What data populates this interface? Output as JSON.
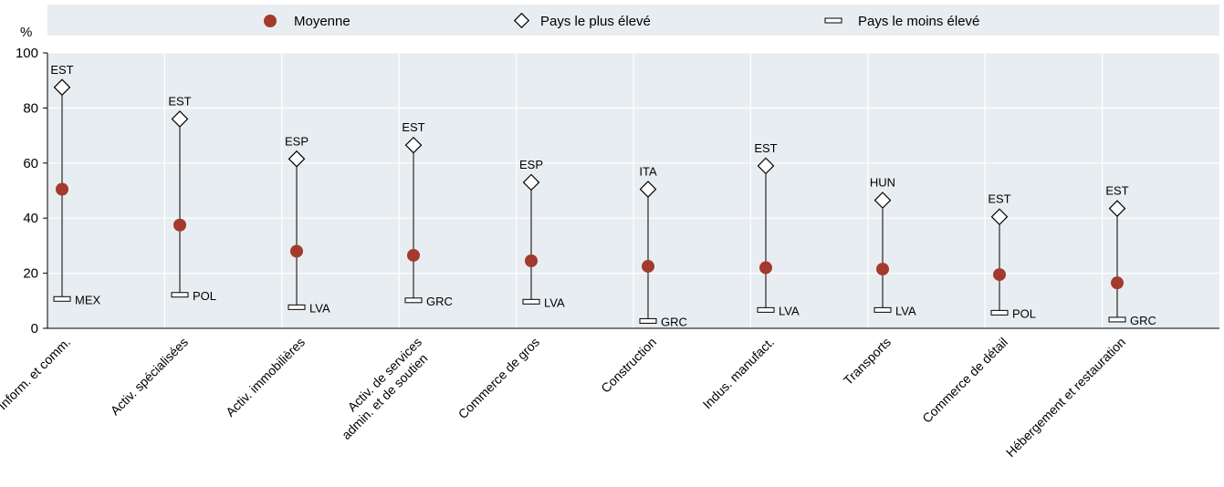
{
  "chart_data": {
    "type": "range-dot",
    "y_unit_label": "%",
    "ylim": [
      0,
      100
    ],
    "y_ticks": [
      "0",
      "20",
      "40",
      "60",
      "80",
      "100"
    ],
    "grid": true,
    "legend_position": "top",
    "legend": {
      "mean": "Moyenne",
      "max": "Pays le plus élevé",
      "min": "Pays le moins élevé"
    },
    "colors": {
      "mean": "#a33a2c",
      "background": "#e8edf1"
    },
    "categories": [
      {
        "label": [
          "Inform. et comm."
        ],
        "mean": 50.5,
        "max": 87.5,
        "max_country": "EST",
        "min": 10.5,
        "min_country": "MEX"
      },
      {
        "label": [
          "Activ. spécialisées"
        ],
        "mean": 37.5,
        "max": 76,
        "max_country": "EST",
        "min": 12,
        "min_country": "POL"
      },
      {
        "label": [
          "Activ. immobilières"
        ],
        "mean": 28,
        "max": 61.5,
        "max_country": "ESP",
        "min": 7.5,
        "min_country": "LVA"
      },
      {
        "label": [
          "Activ. de services",
          "admin. et de soutien"
        ],
        "mean": 26.5,
        "max": 66.5,
        "max_country": "EST",
        "min": 10,
        "min_country": "GRC"
      },
      {
        "label": [
          "Commerce de gros"
        ],
        "mean": 24.5,
        "max": 53,
        "max_country": "ESP",
        "min": 9.5,
        "min_country": "LVA"
      },
      {
        "label": [
          "Construction"
        ],
        "mean": 22.5,
        "max": 50.5,
        "max_country": "ITA",
        "min": 2.5,
        "min_country": "GRC"
      },
      {
        "label": [
          "Indus. manufact."
        ],
        "mean": 22,
        "max": 59,
        "max_country": "EST",
        "min": 6.5,
        "min_country": "LVA"
      },
      {
        "label": [
          "Transports"
        ],
        "mean": 21.5,
        "max": 46.5,
        "max_country": "HUN",
        "min": 6.5,
        "min_country": "LVA"
      },
      {
        "label": [
          "Commerce de détail"
        ],
        "mean": 19.5,
        "max": 40.5,
        "max_country": "EST",
        "min": 5.5,
        "min_country": "POL"
      },
      {
        "label": [
          "Hébergement et restauration"
        ],
        "mean": 16.5,
        "max": 43.5,
        "max_country": "EST",
        "min": 3,
        "min_country": "GRC"
      }
    ]
  }
}
